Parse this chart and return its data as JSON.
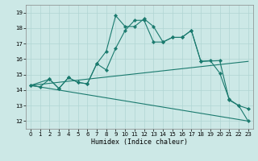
{
  "xlabel": "Humidex (Indice chaleur)",
  "background_color": "#cce8e6",
  "line_color": "#1a7a6e",
  "grid_color": "#b0d5d3",
  "xlim": [
    -0.5,
    23.5
  ],
  "ylim": [
    11.5,
    19.5
  ],
  "xticks": [
    0,
    1,
    2,
    3,
    4,
    5,
    6,
    7,
    8,
    9,
    10,
    11,
    12,
    13,
    14,
    15,
    16,
    17,
    18,
    19,
    20,
    21,
    22,
    23
  ],
  "yticks": [
    12,
    13,
    14,
    15,
    16,
    17,
    18,
    19
  ],
  "line1_x": [
    0,
    1,
    2,
    3,
    4,
    5,
    6,
    7,
    8,
    9,
    10,
    11,
    12,
    13,
    14,
    15,
    16,
    17,
    18,
    20,
    21,
    22,
    23
  ],
  "line1_y": [
    14.3,
    14.2,
    14.7,
    14.1,
    14.8,
    14.5,
    14.4,
    15.7,
    16.5,
    18.8,
    18.1,
    18.1,
    18.6,
    18.1,
    17.1,
    17.4,
    17.4,
    17.85,
    15.85,
    15.9,
    13.35,
    13.0,
    12.8
  ],
  "line2_x": [
    0,
    2,
    3,
    4,
    5,
    6,
    7,
    8,
    9,
    10,
    11,
    12,
    13,
    14,
    15,
    16,
    17,
    18,
    19,
    20,
    21,
    22,
    23
  ],
  "line2_y": [
    14.3,
    14.7,
    14.1,
    14.8,
    14.5,
    14.4,
    15.7,
    15.3,
    16.7,
    17.85,
    18.5,
    18.5,
    17.1,
    17.1,
    17.4,
    17.4,
    17.85,
    15.85,
    15.9,
    15.1,
    13.4,
    13.0,
    12.0
  ],
  "line3_x": [
    0,
    23
  ],
  "line3_y": [
    14.3,
    15.85
  ],
  "line4_x": [
    0,
    23
  ],
  "line4_y": [
    14.3,
    12.0
  ]
}
